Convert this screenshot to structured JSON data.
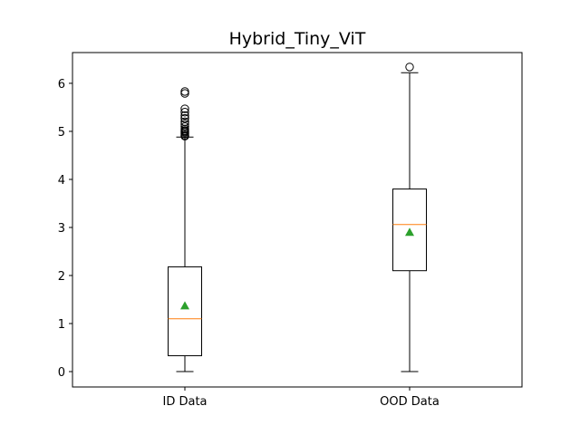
{
  "chart_data": {
    "type": "box",
    "title": "Hybrid_Tiny_ViT",
    "xlabel": "",
    "ylabel": "",
    "categories": [
      "ID Data",
      "OOD Data"
    ],
    "ylim": [
      -0.32,
      6.64
    ],
    "yticks": [
      0,
      1,
      2,
      3,
      4,
      5,
      6
    ],
    "grid": false,
    "boxes": [
      {
        "name": "ID Data",
        "whisker_low": 0.0,
        "q1": 0.33,
        "median": 1.1,
        "q3": 2.18,
        "whisker_high": 4.88,
        "mean": 1.37,
        "outliers": [
          4.9,
          4.92,
          4.95,
          4.98,
          5.0,
          5.02,
          5.05,
          5.1,
          5.15,
          5.2,
          5.27,
          5.33,
          5.4,
          5.47,
          5.79,
          5.83
        ]
      },
      {
        "name": "OOD Data",
        "whisker_low": 0.0,
        "q1": 2.1,
        "median": 3.06,
        "q3": 3.8,
        "whisker_high": 6.22,
        "mean": 2.9,
        "outliers": [
          6.34
        ]
      }
    ],
    "colors": {
      "median": "#ff7f0e",
      "mean": "#2ca02c",
      "box": "#000000"
    }
  }
}
